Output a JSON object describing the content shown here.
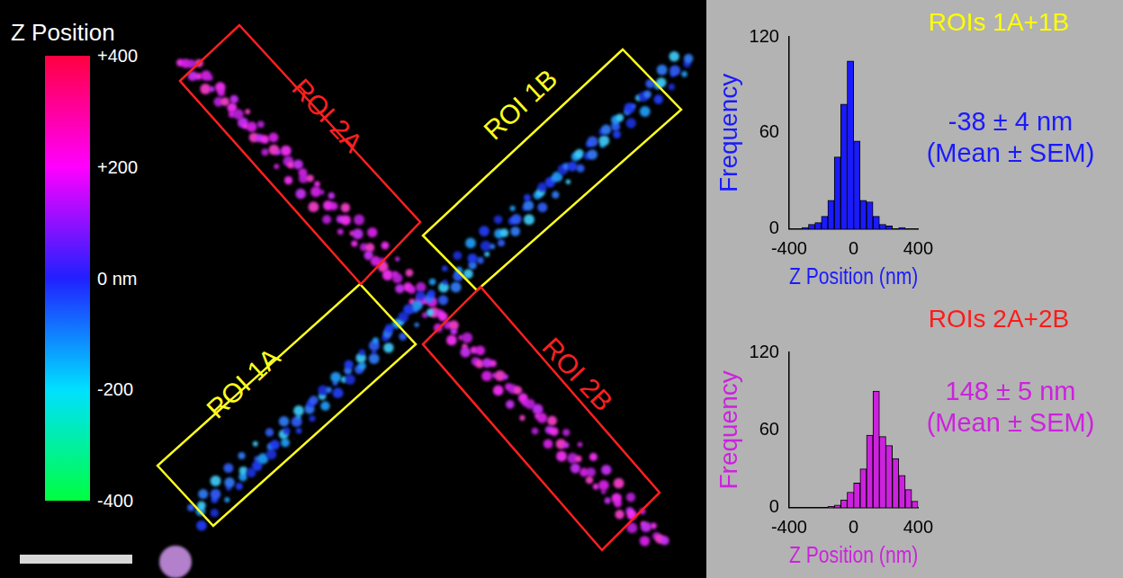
{
  "image_panel": {
    "colorbar": {
      "title": "Z Position",
      "range": [
        -400,
        400
      ],
      "ticks": [
        {
          "value": 400,
          "label": "+400"
        },
        {
          "value": 200,
          "label": "+200"
        },
        {
          "value": 0,
          "label": "0 nm"
        },
        -200,
        -400
      ]
    },
    "rois": [
      "ROI 1A",
      "ROI 1B",
      "ROI 2A",
      "ROI 2B"
    ]
  },
  "chart_data": [
    {
      "type": "histogram",
      "title": "ROIs 1A+1B",
      "x_label": "Z Position (nm)",
      "y_label": "Frequency",
      "bins": [
        -400,
        -360,
        -320,
        -280,
        -240,
        -200,
        -160,
        -120,
        -80,
        -40,
        0,
        40,
        80,
        120,
        160,
        200,
        240,
        280,
        320,
        360,
        400
      ],
      "counts": [
        0,
        0,
        1,
        3,
        4,
        8,
        18,
        45,
        78,
        105,
        55,
        18,
        17,
        8,
        3,
        2,
        0,
        1,
        0,
        0
      ],
      "color": "#1a1aff",
      "xlim": [
        -400,
        400
      ],
      "xticks": [
        -400,
        0,
        400
      ],
      "ylim": [
        0,
        120
      ],
      "yticks": [
        0,
        60,
        120
      ],
      "grid": false,
      "annotations": [
        "-38 ± 4 nm",
        "(Mean ± SEM)"
      ]
    },
    {
      "type": "histogram",
      "title": "ROIs 2A+2B",
      "x_label": "Z Position (nm)",
      "y_label": "Frequency",
      "bins": [
        -400,
        -360,
        -320,
        -280,
        -240,
        -200,
        -160,
        -120,
        -80,
        -40,
        0,
        40,
        80,
        120,
        160,
        200,
        240,
        280,
        320,
        360,
        400
      ],
      "counts": [
        0,
        0,
        0,
        0,
        0,
        0,
        1,
        2,
        6,
        12,
        19,
        30,
        56,
        90,
        55,
        48,
        38,
        25,
        14,
        5
      ],
      "color": "#cc22dd",
      "xlim": [
        -400,
        400
      ],
      "xticks": [
        -400,
        0,
        400
      ],
      "ylim": [
        0,
        120
      ],
      "yticks": [
        0,
        60,
        120
      ],
      "grid": false,
      "annotations": [
        "148 ± 5 nm",
        "(Mean ± SEM)"
      ]
    }
  ]
}
